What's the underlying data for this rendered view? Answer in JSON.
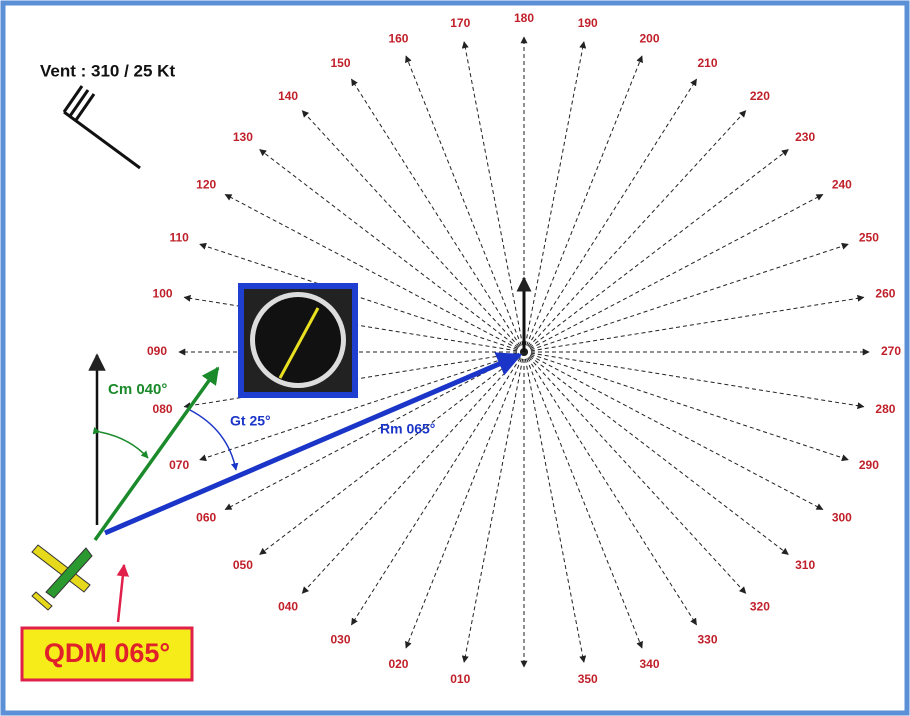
{
  "wind_label": "Vent : 310 / 25 Kt",
  "bearing_labels": [
    "010",
    "020",
    "030",
    "040",
    "050",
    "060",
    "070",
    "080",
    "090",
    "100",
    "110",
    "120",
    "130",
    "140",
    "150",
    "160",
    "170",
    "180",
    "190",
    "200",
    "210",
    "220",
    "230",
    "240",
    "250",
    "260",
    "270",
    "280",
    "290",
    "300",
    "310",
    "320",
    "330",
    "340",
    "350"
  ],
  "course_label": "Cm 040°",
  "drift_label": "Gt 25°",
  "route_label": "Rm 065°",
  "qdm_label": "QDM 065°"
}
